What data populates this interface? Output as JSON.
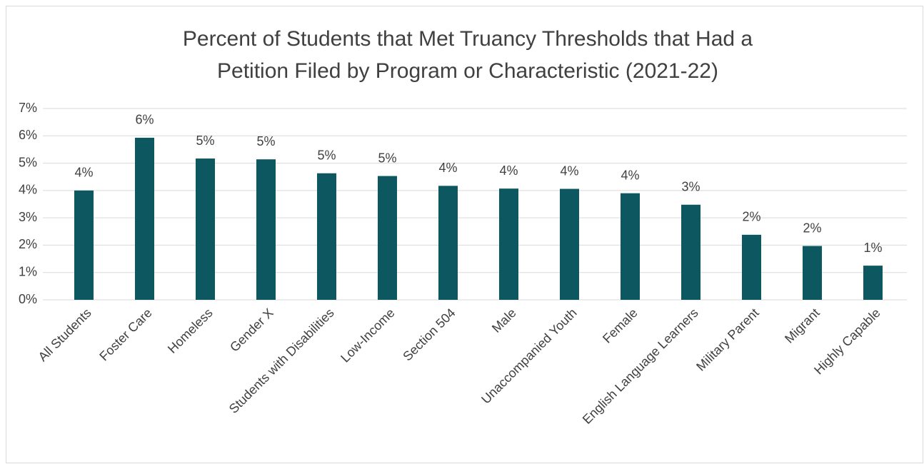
{
  "chart_data": {
    "type": "bar",
    "title": [
      "Percent of Students that Met Truancy Thresholds that Had a",
      "Petition Filed by Program or Characteristic (2021-22)"
    ],
    "categories": [
      "All Students",
      "Foster Care",
      "Homeless",
      "Gender X",
      "Students with Disabilities",
      "Low-Income",
      "Section 504",
      "Male",
      "Unaccompanied Youth",
      "Female",
      "English Language Learners",
      "Military Parent",
      "Migrant",
      "Highly Capable"
    ],
    "values": [
      4.0,
      5.93,
      5.17,
      5.14,
      4.63,
      4.53,
      4.17,
      4.07,
      4.06,
      3.9,
      3.48,
      2.38,
      1.97,
      1.25
    ],
    "value_labels": [
      "4%",
      "6%",
      "5%",
      "5%",
      "5%",
      "5%",
      "4%",
      "4%",
      "4%",
      "4%",
      "3%",
      "2%",
      "2%",
      "1%"
    ],
    "color": "#0d5760",
    "ylim": [
      0,
      7
    ],
    "yticks": [
      {
        "value": 0,
        "label": "0%"
      },
      {
        "value": 1,
        "label": "1%"
      },
      {
        "value": 2,
        "label": "2%"
      },
      {
        "value": 3,
        "label": "3%"
      },
      {
        "value": 4,
        "label": "4%"
      },
      {
        "value": 5,
        "label": "5%"
      },
      {
        "value": 6,
        "label": "6%"
      },
      {
        "value": 7,
        "label": "7%"
      }
    ],
    "grid": true
  }
}
